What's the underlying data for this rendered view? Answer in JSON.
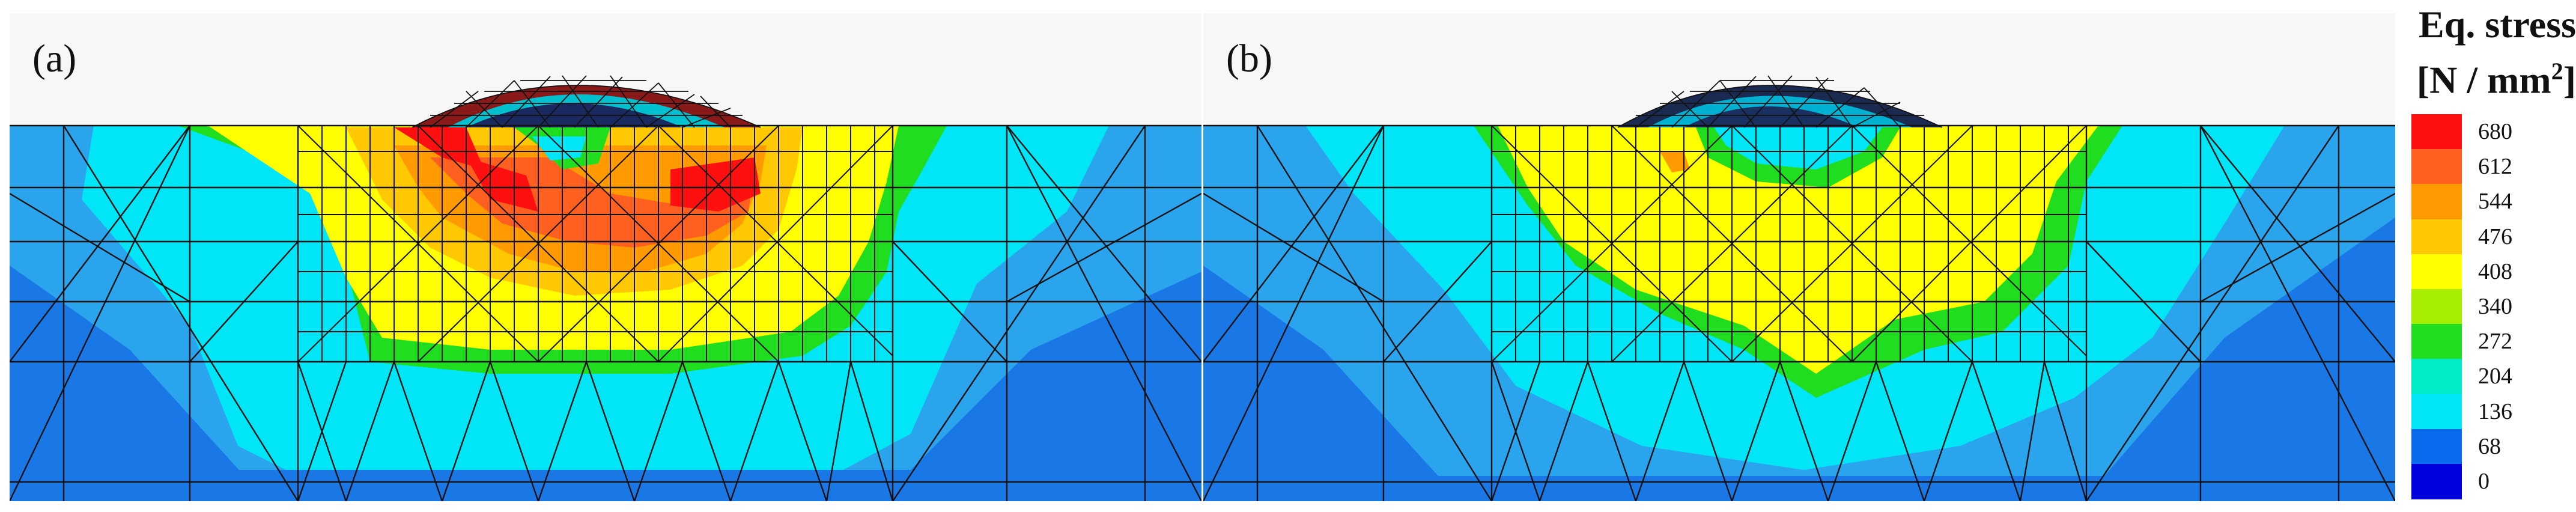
{
  "panels": [
    {
      "label": "(a)"
    },
    {
      "label": "(b)"
    }
  ],
  "legend": {
    "title_line1": "Eq. stress",
    "title_line2_prefix": "[N / mm",
    "title_line2_sup": "2",
    "title_line2_suffix": "]",
    "levels": [
      {
        "value": "680",
        "color": "#ff1010"
      },
      {
        "value": "612",
        "color": "#ff6020"
      },
      {
        "value": "544",
        "color": "#ff9a00"
      },
      {
        "value": "476",
        "color": "#ffc800"
      },
      {
        "value": "408",
        "color": "#ffff00"
      },
      {
        "value": "340",
        "color": "#a8ee00"
      },
      {
        "value": "272",
        "color": "#20dd20"
      },
      {
        "value": "204",
        "color": "#00ecc8"
      },
      {
        "value": "136",
        "color": "#00e6f6"
      },
      {
        "value": "68",
        "color": "#0a6aee"
      },
      {
        "value": "0",
        "color": "#0000dd"
      }
    ]
  },
  "colors": {
    "deep_blue": "#1a78e6",
    "mid_blue": "#2aa4ec",
    "cyan": "#00e6f6",
    "green": "#20dd20",
    "yellow": "#ffff00",
    "gold": "#ffc800",
    "orange": "#ff9a00",
    "dark_orange": "#ff6020",
    "red": "#ff1010",
    "mesh_line": "#111111",
    "background": "#f7f7f7"
  }
}
